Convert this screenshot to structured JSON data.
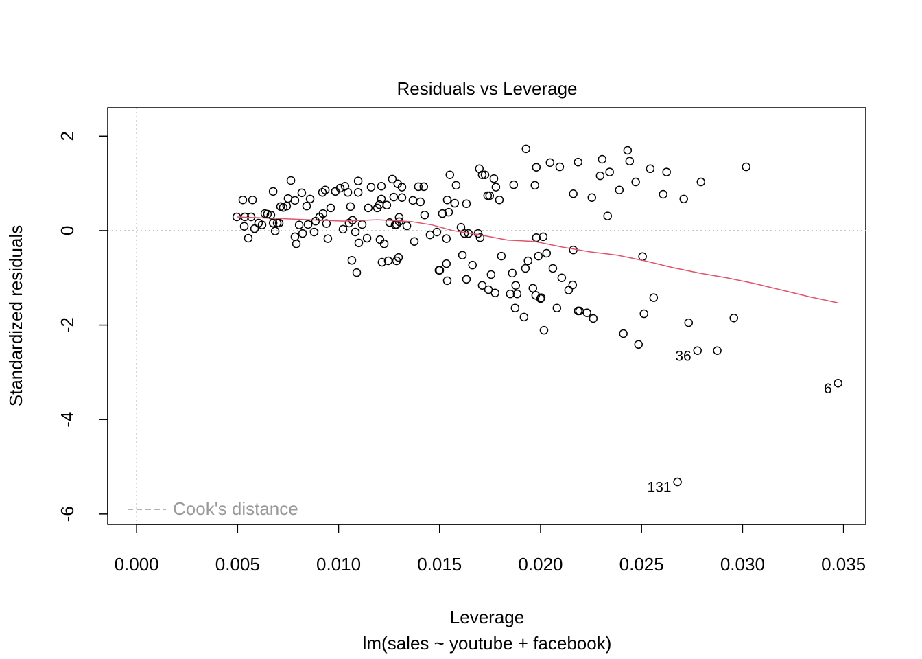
{
  "chart_data": {
    "type": "scatter",
    "title": "Residuals vs Leverage",
    "xlabel": "Leverage",
    "subtitle": "lm(sales ~ youtube + facebook)",
    "ylabel": "Standardized residuals",
    "color": "#000000",
    "xlim": [
      -0.00143,
      0.0361
    ],
    "ylim": [
      -6.22,
      2.6
    ],
    "xticks": [
      {
        "value": 0,
        "label": "0.000"
      },
      {
        "value": 0.005,
        "label": "0.005"
      },
      {
        "value": 0.01,
        "label": "0.010"
      },
      {
        "value": 0.015,
        "label": "0.015"
      },
      {
        "value": 0.02,
        "label": "0.020"
      },
      {
        "value": 0.025,
        "label": "0.025"
      },
      {
        "value": 0.03,
        "label": "0.030"
      },
      {
        "value": 0.035,
        "label": "0.035"
      }
    ],
    "yticks": [
      2,
      0,
      -2,
      -4,
      -6
    ],
    "x": [
      0.00496,
      0.00526,
      0.00574,
      0.00533,
      0.00536,
      0.00553,
      0.00567,
      0.00584,
      0.00604,
      0.00621,
      0.00635,
      0.00648,
      0.00665,
      0.00676,
      0.00676,
      0.00686,
      0.00696,
      0.00706,
      0.00713,
      0.00726,
      0.00743,
      0.0075,
      0.00764,
      0.00784,
      0.00784,
      0.00791,
      0.00805,
      0.00818,
      0.00822,
      0.00842,
      0.00849,
      0.00859,
      0.00879,
      0.00886,
      0.00906,
      0.0092,
      0.00923,
      0.00934,
      0.0094,
      0.00947,
      0.00961,
      0.00984,
      0.01008,
      0.01022,
      0.01032,
      0.01046,
      0.01052,
      0.01059,
      0.01066,
      0.01069,
      0.01083,
      0.0109,
      0.01097,
      0.01097,
      0.011,
      0.01117,
      0.01141,
      0.01147,
      0.01161,
      0.01192,
      0.01202,
      0.01205,
      0.01212,
      0.01212,
      0.01215,
      0.01226,
      0.01239,
      0.01246,
      0.01253,
      0.01266,
      0.01273,
      0.0128,
      0.01287,
      0.01287,
      0.01293,
      0.01297,
      0.013,
      0.013,
      0.01314,
      0.01314,
      0.01338,
      0.01368,
      0.01375,
      0.01395,
      0.01405,
      0.01422,
      0.01426,
      0.01453,
      0.01487,
      0.01497,
      0.01501,
      0.01514,
      0.01534,
      0.01534,
      0.01538,
      0.01538,
      0.01545,
      0.01551,
      0.01575,
      0.01582,
      0.01606,
      0.01613,
      0.01623,
      0.01633,
      0.01633,
      0.01643,
      0.01663,
      0.01691,
      0.01697,
      0.01701,
      0.01711,
      0.01711,
      0.01725,
      0.01738,
      0.01742,
      0.01748,
      0.01755,
      0.01769,
      0.01775,
      0.01779,
      0.01796,
      0.01806,
      0.0185,
      0.0186,
      0.01867,
      0.01874,
      0.01877,
      0.01884,
      0.01918,
      0.01925,
      0.01928,
      0.01938,
      0.01962,
      0.01972,
      0.01976,
      0.01979,
      0.01979,
      0.01989,
      0.02,
      0.02003,
      0.02013,
      0.02017,
      0.0203,
      0.02047,
      0.02061,
      0.02081,
      0.02095,
      0.02105,
      0.02139,
      0.02159,
      0.02162,
      0.02162,
      0.02186,
      0.02186,
      0.02193,
      0.0223,
      0.02254,
      0.02261,
      0.02295,
      0.02305,
      0.02332,
      0.02342,
      0.0239,
      0.0241,
      0.02431,
      0.02441,
      0.02471,
      0.02485,
      0.02505,
      0.02512,
      0.02543,
      0.0256,
      0.02607,
      0.02624,
      0.02678,
      0.02709,
      0.02733,
      0.02777,
      0.02794,
      0.02875,
      0.02957,
      0.03018,
      0.03473
    ],
    "values": [
      0.29,
      0.65,
      0.65,
      0.09,
      0.29,
      -0.16,
      0.29,
      0.04,
      0.16,
      0.12,
      0.36,
      0.35,
      0.33,
      0.83,
      0.16,
      -0.01,
      0.16,
      0.16,
      0.51,
      0.49,
      0.52,
      0.68,
      1.06,
      0.64,
      -0.13,
      -0.28,
      0.12,
      0.8,
      -0.06,
      0.52,
      0.13,
      0.67,
      -0.03,
      0.2,
      0.29,
      0.81,
      0.36,
      0.86,
      0.15,
      -0.17,
      0.48,
      0.83,
      0.9,
      0.03,
      0.94,
      0.81,
      0.16,
      0.51,
      -0.63,
      0.22,
      -0.03,
      -0.89,
      1.05,
      0.81,
      -0.26,
      0.13,
      -0.16,
      0.48,
      0.92,
      0.48,
      0.55,
      -0.19,
      0.94,
      0.67,
      -0.67,
      -0.28,
      0.54,
      -0.64,
      0.17,
      1.09,
      0.71,
      0.12,
      0.13,
      -0.64,
      0.99,
      -0.57,
      0.28,
      0.19,
      0.7,
      0.92,
      0.1,
      0.64,
      -0.23,
      0.93,
      0.61,
      0.93,
      0.33,
      -0.09,
      -0.03,
      -0.84,
      -0.84,
      0.36,
      -0.17,
      -0.7,
      0.65,
      -1.06,
      0.39,
      1.18,
      0.58,
      0.96,
      0.07,
      -0.52,
      -0.06,
      0.57,
      -1.03,
      -0.06,
      -0.73,
      -0.06,
      1.31,
      -0.15,
      1.18,
      -1.16,
      1.18,
      0.74,
      -1.25,
      0.74,
      -0.93,
      1.1,
      -1.32,
      0.92,
      0.65,
      -0.54,
      -1.34,
      -0.9,
      0.97,
      -1.64,
      -1.16,
      -1.34,
      -1.83,
      -0.8,
      1.73,
      -0.64,
      -1.22,
      0.96,
      -1.37,
      1.34,
      -0.15,
      -0.54,
      -1.44,
      -1.42,
      -0.13,
      -2.11,
      -0.48,
      1.44,
      -0.8,
      -1.64,
      1.35,
      -1,
      -1.26,
      -1.15,
      0.78,
      -0.41,
      1.45,
      -1.7,
      -1.7,
      -1.74,
      0.7,
      -1.86,
      1.16,
      1.51,
      0.31,
      1.24,
      0.86,
      -2.18,
      1.7,
      1.47,
      1.03,
      -2.41,
      -0.55,
      -1.76,
      1.31,
      -1.42,
      0.77,
      1.24,
      -5.32,
      0.67,
      -1.95,
      -2.54,
      1.03,
      -2.54,
      -1.85,
      1.35,
      -3.23
    ],
    "point_labels": [
      null,
      null,
      null,
      null,
      null,
      null,
      null,
      null,
      null,
      null,
      null,
      null,
      null,
      null,
      null,
      null,
      null,
      null,
      null,
      null,
      null,
      null,
      null,
      null,
      null,
      null,
      null,
      null,
      null,
      null,
      null,
      null,
      null,
      null,
      null,
      null,
      null,
      null,
      null,
      null,
      null,
      null,
      null,
      null,
      null,
      null,
      null,
      null,
      null,
      null,
      null,
      null,
      null,
      null,
      null,
      null,
      null,
      null,
      null,
      null,
      null,
      null,
      null,
      null,
      null,
      null,
      null,
      null,
      null,
      null,
      null,
      null,
      null,
      null,
      null,
      null,
      null,
      null,
      null,
      null,
      null,
      null,
      null,
      null,
      null,
      null,
      null,
      null,
      null,
      null,
      null,
      null,
      null,
      null,
      null,
      null,
      null,
      null,
      null,
      null,
      null,
      null,
      null,
      null,
      null,
      null,
      null,
      null,
      null,
      null,
      null,
      null,
      null,
      null,
      null,
      null,
      null,
      null,
      null,
      null,
      null,
      null,
      null,
      null,
      null,
      null,
      null,
      null,
      null,
      null,
      null,
      null,
      null,
      null,
      null,
      null,
      null,
      null,
      null,
      null,
      null,
      null,
      null,
      null,
      null,
      null,
      null,
      null,
      null,
      null,
      null,
      null,
      null,
      null,
      null,
      null,
      null,
      null,
      null,
      null,
      null,
      null,
      null,
      null,
      null,
      null,
      null,
      null,
      null,
      null,
      null,
      null,
      null,
      null,
      "131",
      null,
      null,
      "36",
      null,
      null,
      null,
      null,
      "6"
    ],
    "smooth": {
      "color": "#DF536B",
      "x": [
        0.00496,
        0.00682,
        0.00852,
        0.01022,
        0.01192,
        0.01361,
        0.01463,
        0.01565,
        0.01701,
        0.01837,
        0.01972,
        0.02108,
        0.02244,
        0.0238,
        0.02516,
        0.02651,
        0.02787,
        0.02923,
        0.03059,
        0.03195,
        0.0333,
        0.03473
      ],
      "values": [
        0.29,
        0.26,
        0.23,
        0.2,
        0.23,
        0.19,
        0.12,
        0,
        -0.09,
        -0.2,
        -0.23,
        -0.35,
        -0.45,
        -0.52,
        -0.64,
        -0.78,
        -0.9,
        -1,
        -1.12,
        -1.26,
        -1.4,
        -1.53
      ]
    },
    "legend": {
      "text": "Cook's distance",
      "color": "#999999",
      "corner": "bottomleft"
    }
  }
}
